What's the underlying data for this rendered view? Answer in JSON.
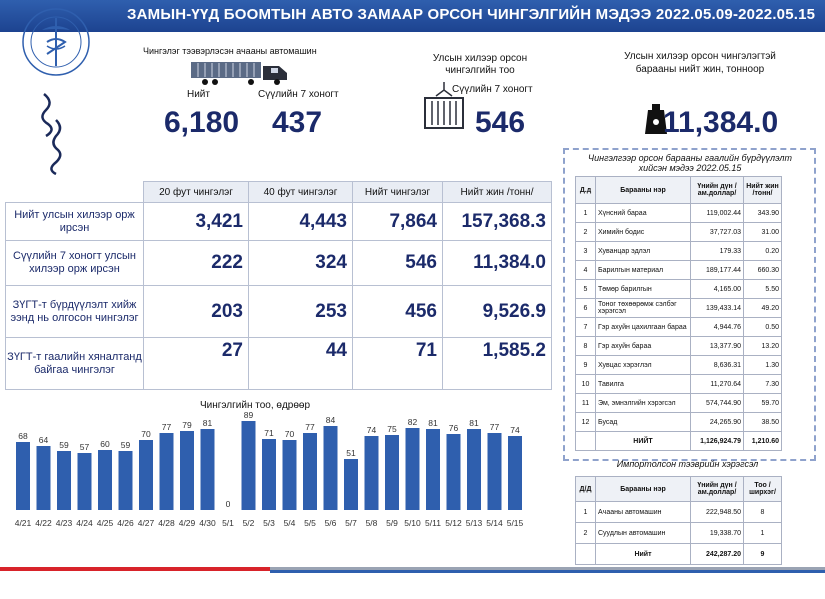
{
  "header": {
    "title": "ЗАМЫН-ҮҮД БООМТЫН АВТО ЗАМААР ОРСОН ЧИНГЭЛГИЙН МЭДЭЭ 2022.05.09-2022.05.15"
  },
  "colors": {
    "accent": "#2f5fae",
    "bar": "#2f5fae",
    "footer_red": "#d8232a"
  },
  "icons": {
    "logo": "customs-emblem-icon",
    "truck": "container-truck-icon",
    "container": "container-icon",
    "weight": "weight-icon"
  },
  "summary": {
    "vehicles": {
      "caption": "Чингэлэг тээвэрлэсэн ачааны автомашин",
      "total_label": "Нийт",
      "week_label": "Сүүлийн 7 хоногт",
      "total": "6,180",
      "week": "437"
    },
    "containers": {
      "caption": "Улсын хилээр орсон чингэлгийн тоо",
      "week_label": "Сүүлийн 7 хоногт",
      "week": "546"
    },
    "weight": {
      "caption": "Улсын хилээр орсон чингэлэгтэй барааны нийт жин, тонноор",
      "value": "11,384.0"
    }
  },
  "main_table": {
    "headers": [
      "20 фут чингэлэг",
      "40 фут чингэлэг",
      "Нийт чингэлэг",
      "Нийт жин /тонн/"
    ],
    "rows": [
      {
        "label": "Нийт улсын хилээр орж ирсэн",
        "values": [
          "3,421",
          "4,443",
          "7,864",
          "157,368.3"
        ]
      },
      {
        "label": "Сүүлийн 7 хоногт улсын хилээр орж ирсэн",
        "values": [
          "222",
          "324",
          "546",
          "11,384.0"
        ]
      },
      {
        "label": "ЗҮГТ-т бүрдүүлэлт хийж ээнд нь олгосон чингэлэг",
        "values": [
          "203",
          "253",
          "456",
          "9,526.9"
        ]
      },
      {
        "label": "ЗҮГТ-т гаалийн хяналтанд байгаа чингэлэг",
        "values": [
          "27",
          "44",
          "71",
          "1,585.2"
        ]
      }
    ]
  },
  "export_table": {
    "title": "Чингэлгээр орсон барааны гаалийн бүрдүүлэлт хийсэн мэдээ 2022.05.15",
    "headers": [
      "Д.д",
      "Барааны нэр",
      "Үнийн дүн /ам.доллар/",
      "Нийт жин /тонн/"
    ],
    "rows": [
      [
        "1",
        "Хүнсний бараа",
        "119,002.44",
        "343.90"
      ],
      [
        "2",
        "Химийн бодис",
        "37,727.03",
        "31.00"
      ],
      [
        "3",
        "Хуванцар эдлэл",
        "179.33",
        "0.20"
      ],
      [
        "4",
        "Барилгын материал",
        "189,177.44",
        "660.30"
      ],
      [
        "5",
        "Төмөр барилгын",
        "4,165.00",
        "5.50"
      ],
      [
        "6",
        "Тоног төхөөрөмж сэлбэг хэрэгсэл",
        "139,433.14",
        "49.20"
      ],
      [
        "7",
        "Гэр ахуйн цахилгаан бараа",
        "4,944.76",
        "0.50"
      ],
      [
        "8",
        "Гэр ахуйн бараа",
        "13,377.90",
        "13.20"
      ],
      [
        "9",
        "Хувцас хэрэглэл",
        "8,636.31",
        "1.30"
      ],
      [
        "10",
        "Тавилга",
        "11,270.64",
        "7.30"
      ],
      [
        "11",
        "Эм, эмнэлгийн хэрэгсэл",
        "574,744.90",
        "59.70"
      ],
      [
        "12",
        "Бусад",
        "24,265.90",
        "38.50"
      ]
    ],
    "total": [
      "НИЙТ",
      "1,126,924.79",
      "1,210.60"
    ]
  },
  "import_table": {
    "title": "Импортолсон тээврийн хэрэгсэл",
    "headers": [
      "Д/Д",
      "Барааны нэр",
      "Үнийн дүн /ам.доллар/",
      "Тоо /ширхэг/"
    ],
    "rows": [
      [
        "1",
        "Ачааны автомашин",
        "222,948.50",
        "8"
      ],
      [
        "2",
        "Суудлын автомашин",
        "19,338.70",
        "1"
      ]
    ],
    "total": [
      "Нийт",
      "242,287.20",
      "9"
    ]
  },
  "chart_data": {
    "type": "bar",
    "title": "Чингэлгийн тоо, өдрөөр",
    "categories": [
      "4/21",
      "4/22",
      "4/23",
      "4/24",
      "4/25",
      "4/26",
      "4/27",
      "4/28",
      "4/29",
      "4/30",
      "5/1",
      "5/2",
      "5/3",
      "5/4",
      "5/5",
      "5/6",
      "5/7",
      "5/8",
      "5/9",
      "5/10",
      "5/11",
      "5/12",
      "5/13",
      "5/14",
      "5/15"
    ],
    "values": [
      68,
      64,
      59,
      57,
      60,
      59,
      70,
      77,
      79,
      81,
      0,
      89,
      71,
      70,
      77,
      84,
      51,
      74,
      75,
      82,
      81,
      76,
      81,
      77,
      74
    ],
    "ylim": [
      0,
      95
    ],
    "xlabel": "",
    "ylabel": ""
  }
}
